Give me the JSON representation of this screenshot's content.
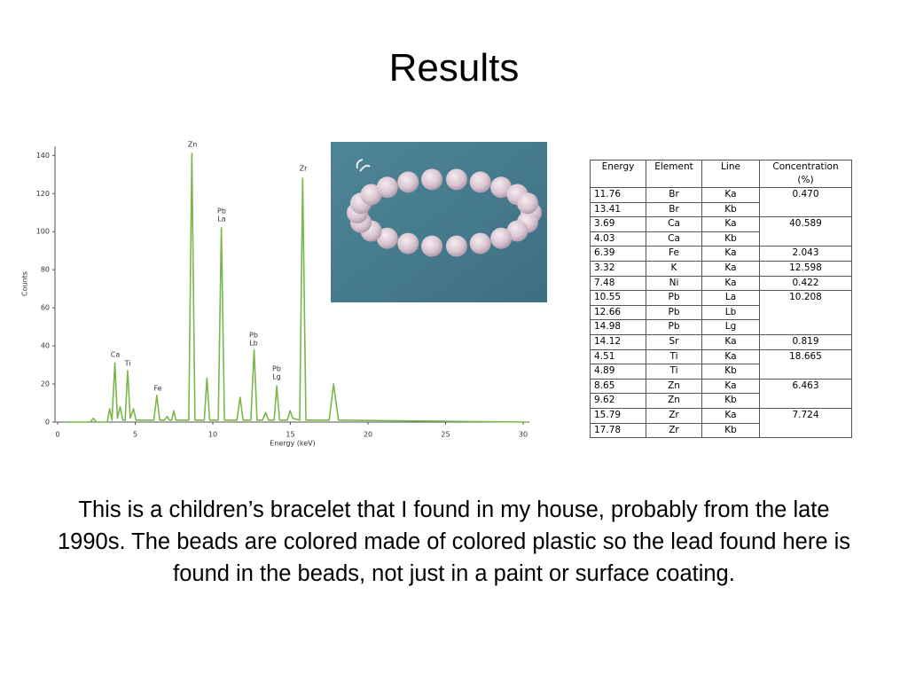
{
  "title": "Results",
  "chart_data": {
    "type": "line",
    "x_label": "Energy (keV)",
    "y_label": "Counts",
    "x": [
      0.5,
      2.1,
      2.3,
      2.5,
      3.2,
      3.35,
      3.5,
      3.69,
      3.85,
      4.03,
      4.2,
      4.35,
      4.51,
      4.68,
      4.89,
      5.05,
      6.2,
      6.39,
      6.58,
      6.9,
      7.06,
      7.2,
      7.35,
      7.48,
      7.62,
      8.45,
      8.65,
      8.85,
      9.45,
      9.62,
      9.8,
      10.35,
      10.55,
      10.75,
      11.55,
      11.76,
      11.95,
      12.45,
      12.66,
      12.85,
      13.2,
      13.41,
      13.6,
      13.95,
      14.12,
      14.3,
      14.8,
      14.98,
      15.15,
      15.6,
      15.79,
      16.0,
      17.5,
      17.78,
      18.1,
      30.3
    ],
    "series": [
      {
        "name": "Counts",
        "color": "#7ab648",
        "values": [
          0,
          0,
          2,
          0,
          0,
          7,
          1,
          31,
          2,
          8,
          1,
          1,
          27,
          2,
          7,
          1,
          1,
          14,
          1,
          1,
          3,
          1,
          1,
          6,
          1,
          1,
          141,
          1,
          1,
          23,
          1,
          1,
          102,
          1,
          1,
          13,
          1,
          1,
          38,
          1,
          1,
          5,
          1,
          1,
          19,
          1,
          1,
          6,
          2,
          1,
          128,
          1,
          1,
          20,
          1,
          0
        ]
      }
    ],
    "xlim": [
      0,
      30.5
    ],
    "ylim": [
      0,
      142
    ],
    "xticks": [
      0,
      5,
      10,
      15,
      20,
      25,
      30
    ],
    "yticks": [
      0,
      20,
      40,
      60,
      80,
      100,
      120,
      140
    ],
    "annotations": [
      [
        "Ca"
      ],
      [
        "Ti"
      ],
      [
        "Fe"
      ],
      [
        "Zn"
      ],
      [
        "Pb",
        "La"
      ],
      [
        "Pb",
        "Lb"
      ],
      [
        "Pb",
        "Lg"
      ],
      [
        "Zr"
      ]
    ]
  },
  "table": {
    "header": [
      "Energy",
      "Element",
      "Line",
      "Concentration (%)"
    ],
    "groups": [
      {
        "concentration": "0.470",
        "rows": [
          [
            "11.76",
            "Br",
            "Ka"
          ],
          [
            "13.41",
            "Br",
            "Kb"
          ]
        ]
      },
      {
        "concentration": "40.589",
        "rows": [
          [
            "3.69",
            "Ca",
            "Ka"
          ],
          [
            "4.03",
            "Ca",
            "Kb"
          ]
        ]
      },
      {
        "concentration": "2.043",
        "rows": [
          [
            "6.39",
            "Fe",
            "Ka"
          ]
        ]
      },
      {
        "concentration": "12.598",
        "rows": [
          [
            "3.32",
            "K",
            "Ka"
          ]
        ]
      },
      {
        "concentration": "0.422",
        "rows": [
          [
            "7.48",
            "Ni",
            "Ka"
          ]
        ]
      },
      {
        "concentration": "10.208",
        "rows": [
          [
            "10.55",
            "Pb",
            "La"
          ],
          [
            "12.66",
            "Pb",
            "Lb"
          ],
          [
            "14.98",
            "Pb",
            "Lg"
          ]
        ]
      },
      {
        "concentration": "0.819",
        "rows": [
          [
            "14.12",
            "Sr",
            "Ka"
          ]
        ]
      },
      {
        "concentration": "18.665",
        "rows": [
          [
            "4.51",
            "Ti",
            "Ka"
          ],
          [
            "4.89",
            "Ti",
            "Kb"
          ]
        ]
      },
      {
        "concentration": "6.463",
        "rows": [
          [
            "8.65",
            "Zn",
            "Ka"
          ],
          [
            "9.62",
            "Zn",
            "Kb"
          ]
        ]
      },
      {
        "concentration": "7.724",
        "rows": [
          [
            "15.79",
            "Zr",
            "Ka"
          ],
          [
            "17.78",
            "Zr",
            "Kb"
          ]
        ]
      }
    ]
  },
  "caption": "This is a children’s bracelet that I found in my house, probably from the late 1990s.  The beads are colored made of colored plastic so the lead found here is found in the beads, not just in a paint or surface coating."
}
